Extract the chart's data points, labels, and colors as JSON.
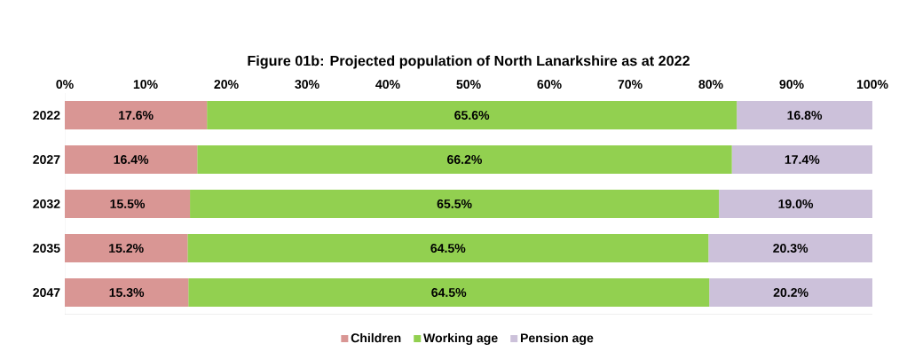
{
  "chart_data": {
    "type": "bar",
    "orientation": "horizontal",
    "stacked": true,
    "title": "Figure 01b: Projected population of North Lanarkshire as at 2022",
    "categories": [
      "2022",
      "2027",
      "2032",
      "2035",
      "2047"
    ],
    "series": [
      {
        "name": "Children",
        "color": "#d99694",
        "values": [
          17.6,
          16.4,
          15.5,
          15.2,
          15.3
        ],
        "value_labels": [
          "17.6%",
          "16.4%",
          "15.5%",
          "15.2%",
          "15.3%"
        ]
      },
      {
        "name": "Working age",
        "color": "#92d050",
        "values": [
          65.6,
          66.2,
          65.5,
          64.5,
          64.5
        ],
        "value_labels": [
          "65.6%",
          "66.2%",
          "65.5%",
          "64.5%",
          "64.5%"
        ]
      },
      {
        "name": "Pension age",
        "color": "#ccc1da",
        "values": [
          16.8,
          17.4,
          19.0,
          20.3,
          20.2
        ],
        "value_labels": [
          "16.8%",
          "17.4%",
          "19.0%",
          "20.3%",
          "20.2%"
        ]
      }
    ],
    "xlim": [
      0,
      100
    ],
    "xticks": [
      {
        "value": 0,
        "label": "0%"
      },
      {
        "value": 10,
        "label": "10%"
      },
      {
        "value": 20,
        "label": "20%"
      },
      {
        "value": 30,
        "label": "30%"
      },
      {
        "value": 40,
        "label": "40%"
      },
      {
        "value": 50,
        "label": "50%"
      },
      {
        "value": 60,
        "label": "60%"
      },
      {
        "value": 70,
        "label": "70%"
      },
      {
        "value": 80,
        "label": "80%"
      },
      {
        "value": 90,
        "label": "90%"
      },
      {
        "value": 100,
        "label": "100%"
      }
    ],
    "legend": "bottom"
  }
}
